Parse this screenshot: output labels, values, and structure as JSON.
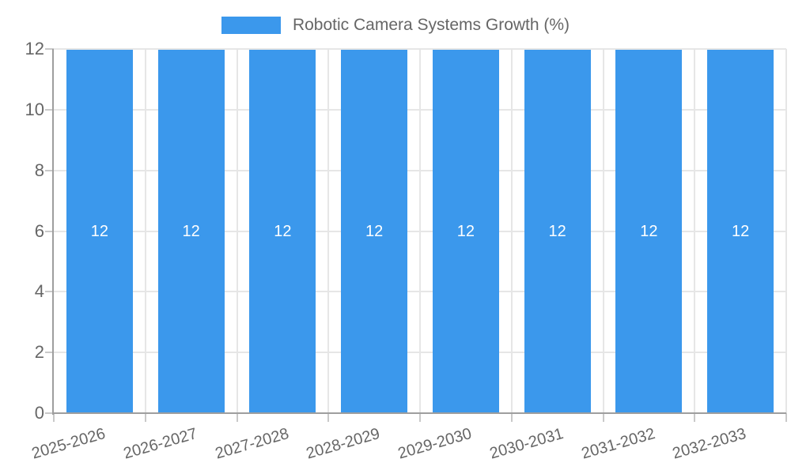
{
  "legend": {
    "label": "Robotic Camera Systems Growth (%)"
  },
  "chart_data": {
    "type": "bar",
    "title": "",
    "xlabel": "",
    "ylabel": "",
    "categories": [
      "2025-2026",
      "2026-2027",
      "2027-2028",
      "2028-2029",
      "2029-2030",
      "2030-2031",
      "2031-2032",
      "2032-2033"
    ],
    "series": [
      {
        "name": "Robotic Camera Systems Growth (%)",
        "values": [
          12,
          12,
          12,
          12,
          12,
          12,
          12,
          12
        ]
      }
    ],
    "value_labels": [
      "12",
      "12",
      "12",
      "12",
      "12",
      "12",
      "12",
      "12"
    ],
    "ylim": [
      0,
      12
    ],
    "yticks": [
      0,
      2,
      4,
      6,
      8,
      10,
      12
    ],
    "grid": true,
    "legend_position": "top",
    "x_tick_rotation_deg": -16,
    "colors": {
      "bar": "#3b98ec",
      "grid_line": "#e6e6e6",
      "axis_line": "#9e9e9e",
      "tick_mark": "#c9c9c9",
      "tick_text": "#666666",
      "value_label": "#ffffff"
    }
  }
}
